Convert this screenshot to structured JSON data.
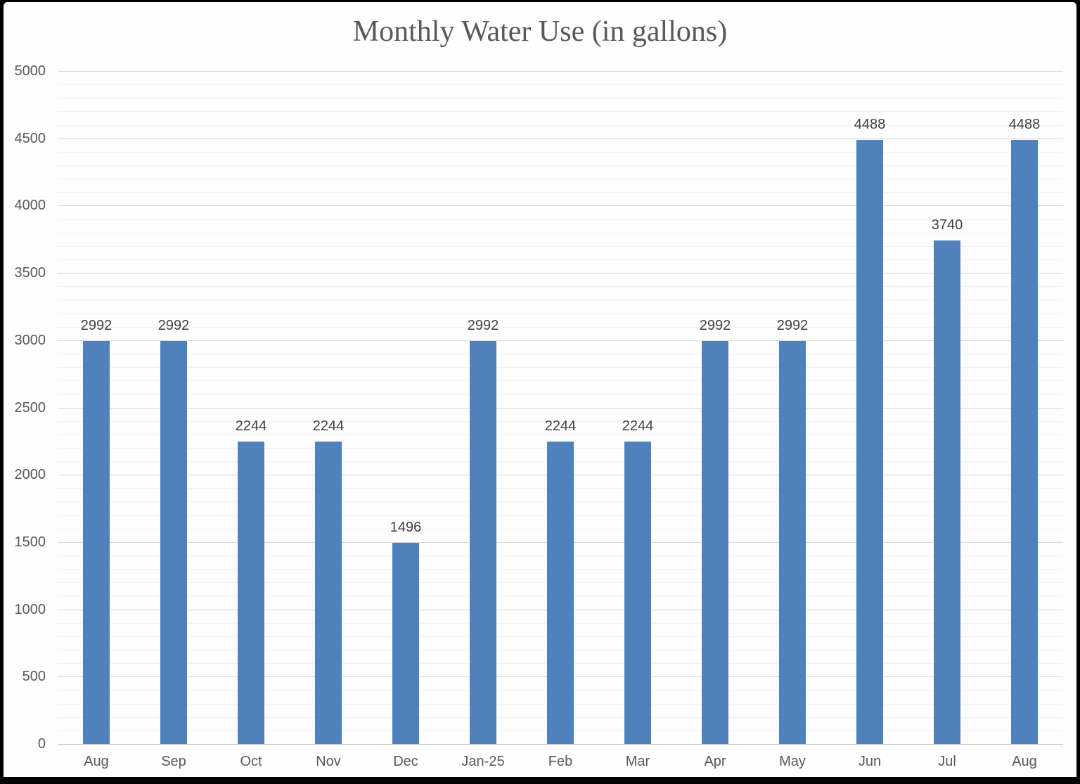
{
  "page": {
    "background": "#fefefe",
    "frame_color": "#000000"
  },
  "chart_data": {
    "type": "bar",
    "title": "Monthly Water Use (in gallons)",
    "categories": [
      "Aug",
      "Sep",
      "Oct",
      "Nov",
      "Dec",
      "Jan-25",
      "Feb",
      "Mar",
      "Apr",
      "May",
      "Jun",
      "Jul",
      "Aug"
    ],
    "values": [
      2992,
      2992,
      2244,
      2244,
      1496,
      2992,
      2244,
      2244,
      2992,
      2992,
      4488,
      3740,
      4488
    ],
    "data_labels": [
      "2992",
      "2992",
      "2244",
      "2244",
      "1496",
      "2992",
      "2244",
      "2244",
      "2992",
      "2992",
      "4488",
      "3740",
      "4488"
    ],
    "xlabel": "",
    "ylabel": "",
    "ylim": [
      0,
      5000
    ],
    "y_major_step": 500,
    "y_minor_step": 100,
    "y_tick_labels": [
      "0",
      "500",
      "1000",
      "1500",
      "2000",
      "2500",
      "3000",
      "3500",
      "4000",
      "4500",
      "5000"
    ],
    "grid": "on",
    "legend": "none",
    "bar_color": "#4F81BD",
    "major_grid_color": "#d9d9d9",
    "minor_grid_color": "#f2f2f2",
    "axis_line_color": "#bfbfbf",
    "title_color": "#595959",
    "tick_label_color": "#595959",
    "data_label_color": "#404040"
  }
}
